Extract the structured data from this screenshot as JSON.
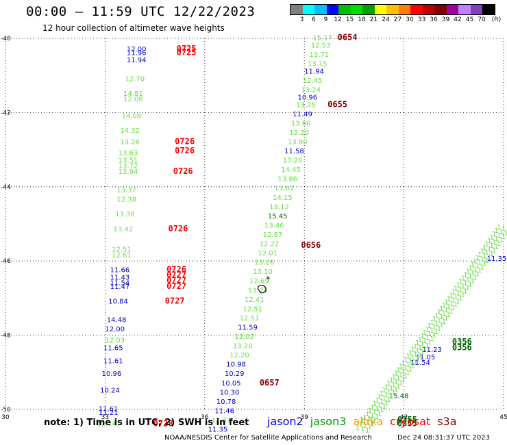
{
  "header": {
    "title": "00:00 — 11:59 UTC 12/22/2023",
    "subtitle": "12 hour collection of altimeter wave heights"
  },
  "legend": {
    "unit": "(ft)",
    "colors": [
      "#808080",
      "#00ffff",
      "#00bfff",
      "#0000ff",
      "#00bf00",
      "#00dd00",
      "#00a000",
      "#ffff00",
      "#ffc000",
      "#ff8000",
      "#ff0000",
      "#c00000",
      "#800000",
      "#a000a0",
      "#c080ff",
      "#8040c0",
      "#000000"
    ],
    "ticks": [
      "3",
      "6",
      "9",
      "12",
      "15",
      "18",
      "21",
      "24",
      "27",
      "30",
      "33",
      "36",
      "39",
      "42",
      "45",
      "70"
    ]
  },
  "colors": {
    "jason2": "#0000dd",
    "jason3": "#009900",
    "altika": "#ff9900",
    "cryosat": "#ff0000",
    "s3a": "#880000",
    "light_green": "#66dd44",
    "blue": "#0000cc",
    "dark_green": "#006600"
  },
  "map": {
    "lon_range": [
      30,
      45
    ],
    "lat_range": [
      -50,
      -40
    ],
    "lon_ticks": [
      "30",
      "33",
      "36",
      "39",
      "42",
      "45"
    ],
    "lat_ticks": [
      "-40",
      "-42",
      "-44",
      "-46",
      "-48",
      "-50"
    ]
  },
  "tracks": {
    "west": [
      {
        "lon": 33.65,
        "lat": -40.35,
        "text": "12.00",
        "c": "blue"
      },
      {
        "lon": 33.65,
        "lat": -40.45,
        "text": "11.96",
        "c": "blue"
      },
      {
        "lon": 33.65,
        "lat": -40.65,
        "text": "11.94",
        "c": "blue"
      },
      {
        "lon": 33.6,
        "lat": -41.15,
        "text": "12.70",
        "c": "light_green"
      },
      {
        "lon": 33.55,
        "lat": -41.55,
        "text": "14.81",
        "c": "light_green"
      },
      {
        "lon": 33.55,
        "lat": -41.7,
        "text": "12.08",
        "c": "light_green"
      },
      {
        "lon": 33.5,
        "lat": -42.15,
        "text": "14.08",
        "c": "light_green"
      },
      {
        "lon": 33.45,
        "lat": -42.55,
        "text": "14.32",
        "c": "light_green"
      },
      {
        "lon": 33.45,
        "lat": -42.85,
        "text": "13.26",
        "c": "light_green"
      },
      {
        "lon": 33.4,
        "lat": -43.15,
        "text": "13.63",
        "c": "light_green"
      },
      {
        "lon": 33.4,
        "lat": -43.35,
        "text": "13.51",
        "c": "light_green"
      },
      {
        "lon": 33.4,
        "lat": -43.5,
        "text": "13.72",
        "c": "light_green"
      },
      {
        "lon": 33.4,
        "lat": -43.65,
        "text": "13.94",
        "c": "light_green"
      },
      {
        "lon": 33.35,
        "lat": -44.15,
        "text": "13.37",
        "c": "light_green"
      },
      {
        "lon": 33.35,
        "lat": -44.4,
        "text": "12.38",
        "c": "light_green"
      },
      {
        "lon": 33.3,
        "lat": -44.8,
        "text": "13.38",
        "c": "light_green"
      },
      {
        "lon": 33.25,
        "lat": -45.2,
        "text": "13.42",
        "c": "light_green"
      },
      {
        "lon": 33.2,
        "lat": -45.75,
        "text": "12.51",
        "c": "light_green"
      },
      {
        "lon": 33.2,
        "lat": -45.9,
        "text": "12.61",
        "c": "light_green"
      },
      {
        "lon": 33.15,
        "lat": -46.3,
        "text": "11.66",
        "c": "blue"
      },
      {
        "lon": 33.15,
        "lat": -46.5,
        "text": "11.43",
        "c": "blue"
      },
      {
        "lon": 33.15,
        "lat": -46.65,
        "text": "11.54",
        "c": "blue"
      },
      {
        "lon": 33.15,
        "lat": -46.75,
        "text": "11.47",
        "c": "blue"
      },
      {
        "lon": 33.1,
        "lat": -47.15,
        "text": "10.84",
        "c": "blue"
      },
      {
        "lon": 33.05,
        "lat": -47.65,
        "text": "14.48",
        "c": "blue"
      },
      {
        "lon": 33.0,
        "lat": -47.9,
        "text": "12.00",
        "c": "blue"
      },
      {
        "lon": 33.0,
        "lat": -48.2,
        "text": "12.03",
        "c": "light_green"
      },
      {
        "lon": 32.95,
        "lat": -48.4,
        "text": "11.65",
        "c": "blue"
      },
      {
        "lon": 32.95,
        "lat": -48.75,
        "text": "11.61",
        "c": "blue"
      },
      {
        "lon": 32.9,
        "lat": -49.1,
        "text": "10.96",
        "c": "blue"
      },
      {
        "lon": 32.85,
        "lat": -49.55,
        "text": "10.24",
        "c": "blue"
      },
      {
        "lon": 32.8,
        "lat": -50.05,
        "text": "11.61",
        "c": "blue"
      },
      {
        "lon": 32.8,
        "lat": -50.15,
        "text": "11.21",
        "c": "blue"
      },
      {
        "lon": 32.75,
        "lat": -50.45,
        "text": "12.14",
        "c": "light_green"
      }
    ],
    "middle": [
      {
        "lon": 39.25,
        "lat": -40.05,
        "text": "15.17",
        "c": "light_green"
      },
      {
        "lon": 39.2,
        "lat": -40.25,
        "text": "12.53",
        "c": "light_green"
      },
      {
        "lon": 39.15,
        "lat": -40.5,
        "text": "13.71",
        "c": "light_green"
      },
      {
        "lon": 39.1,
        "lat": -40.75,
        "text": "13.15",
        "c": "light_green"
      },
      {
        "lon": 39.0,
        "lat": -40.95,
        "text": "11.94",
        "c": "blue"
      },
      {
        "lon": 38.95,
        "lat": -41.2,
        "text": "12.45",
        "c": "light_green"
      },
      {
        "lon": 38.9,
        "lat": -41.45,
        "text": "13.24",
        "c": "light_green"
      },
      {
        "lon": 38.8,
        "lat": -41.65,
        "text": "10.96",
        "c": "blue"
      },
      {
        "lon": 38.75,
        "lat": -41.85,
        "text": "13.25",
        "c": "light_green"
      },
      {
        "lon": 38.65,
        "lat": -42.1,
        "text": "11.49",
        "c": "blue"
      },
      {
        "lon": 38.6,
        "lat": -42.35,
        "text": "13.86",
        "c": "light_green"
      },
      {
        "lon": 38.55,
        "lat": -42.6,
        "text": "13.20",
        "c": "light_green"
      },
      {
        "lon": 38.5,
        "lat": -42.85,
        "text": "13.80",
        "c": "light_green"
      },
      {
        "lon": 38.4,
        "lat": -43.1,
        "text": "11.58",
        "c": "blue"
      },
      {
        "lon": 38.35,
        "lat": -43.35,
        "text": "13.20",
        "c": "light_green"
      },
      {
        "lon": 38.3,
        "lat": -43.6,
        "text": "14.45",
        "c": "light_green"
      },
      {
        "lon": 38.2,
        "lat": -43.85,
        "text": "13.86",
        "c": "light_green"
      },
      {
        "lon": 38.1,
        "lat": -44.1,
        "text": "13.61",
        "c": "light_green"
      },
      {
        "lon": 38.05,
        "lat": -44.35,
        "text": "14.15",
        "c": "light_green"
      },
      {
        "lon": 37.95,
        "lat": -44.6,
        "text": "13.12",
        "c": "light_green"
      },
      {
        "lon": 37.9,
        "lat": -44.85,
        "text": "15.45",
        "c": "dark_green"
      },
      {
        "lon": 37.8,
        "lat": -45.1,
        "text": "13.46",
        "c": "light_green"
      },
      {
        "lon": 37.75,
        "lat": -45.35,
        "text": "12.87",
        "c": "light_green"
      },
      {
        "lon": 37.65,
        "lat": -45.6,
        "text": "12.22",
        "c": "light_green"
      },
      {
        "lon": 37.6,
        "lat": -45.85,
        "text": "12.01",
        "c": "light_green"
      },
      {
        "lon": 37.5,
        "lat": -46.1,
        "text": "13.26",
        "c": "light_green"
      },
      {
        "lon": 37.45,
        "lat": -46.35,
        "text": "13.10",
        "c": "light_green"
      },
      {
        "lon": 37.35,
        "lat": -46.6,
        "text": "12.69",
        "c": "light_green"
      },
      {
        "lon": 37.3,
        "lat": -46.85,
        "text": "13.74",
        "c": "light_green"
      },
      {
        "lon": 37.2,
        "lat": -47.1,
        "text": "12.41",
        "c": "light_green"
      },
      {
        "lon": 37.15,
        "lat": -47.35,
        "text": "12.51",
        "c": "light_green"
      },
      {
        "lon": 37.05,
        "lat": -47.6,
        "text": "12.51",
        "c": "light_green"
      },
      {
        "lon": 37.0,
        "lat": -47.85,
        "text": "11.59",
        "c": "blue"
      },
      {
        "lon": 36.9,
        "lat": -48.1,
        "text": "12.02",
        "c": "light_green"
      },
      {
        "lon": 36.85,
        "lat": -48.35,
        "text": "13.20",
        "c": "light_green"
      },
      {
        "lon": 36.75,
        "lat": -48.6,
        "text": "12.20",
        "c": "light_green"
      },
      {
        "lon": 36.65,
        "lat": -48.85,
        "text": "10.98",
        "c": "blue"
      },
      {
        "lon": 36.6,
        "lat": -49.1,
        "text": "10.29",
        "c": "blue"
      },
      {
        "lon": 36.5,
        "lat": -49.35,
        "text": "10.05",
        "c": "blue"
      },
      {
        "lon": 36.45,
        "lat": -49.6,
        "text": "10.30",
        "c": "blue"
      },
      {
        "lon": 36.35,
        "lat": -49.85,
        "text": "10.78",
        "c": "blue"
      },
      {
        "lon": 36.3,
        "lat": -50.1,
        "text": "11.46",
        "c": "blue"
      },
      {
        "lon": 36.2,
        "lat": -50.35,
        "text": "12.37",
        "c": "light_green"
      },
      {
        "lon": 36.1,
        "lat": -50.6,
        "text": "11.35",
        "c": "blue"
      }
    ],
    "east": [
      {
        "lon": 44.5,
        "lat": -46.0,
        "text": "11.35",
        "c": "blue"
      },
      {
        "lon": 42.55,
        "lat": -48.45,
        "text": "11.23",
        "c": "blue"
      },
      {
        "lon": 42.35,
        "lat": -48.65,
        "text": "11.05",
        "c": "blue"
      },
      {
        "lon": 42.2,
        "lat": -48.8,
        "text": "11.54",
        "c": "blue"
      },
      {
        "lon": 41.55,
        "lat": -49.7,
        "text": "15.48",
        "c": "dark_green"
      }
    ]
  },
  "times": [
    {
      "lon": 35.15,
      "lat": -40.35,
      "text": "0725",
      "c": "#ff0000"
    },
    {
      "lon": 35.15,
      "lat": -40.45,
      "text": "0725",
      "c": "#ff0000"
    },
    {
      "lon": 35.1,
      "lat": -42.85,
      "text": "0726",
      "c": "#ff0000"
    },
    {
      "lon": 35.1,
      "lat": -43.1,
      "text": "0726",
      "c": "#ff0000"
    },
    {
      "lon": 35.05,
      "lat": -43.65,
      "text": "0726",
      "c": "#ff0000"
    },
    {
      "lon": 34.9,
      "lat": -45.2,
      "text": "0726",
      "c": "#ff0000"
    },
    {
      "lon": 34.85,
      "lat": -46.3,
      "text": "0726",
      "c": "#ff0000"
    },
    {
      "lon": 34.85,
      "lat": -46.45,
      "text": "0727",
      "c": "#ff0000"
    },
    {
      "lon": 34.85,
      "lat": -46.6,
      "text": "0727",
      "c": "#ff0000"
    },
    {
      "lon": 34.85,
      "lat": -46.75,
      "text": "0727",
      "c": "#ff0000"
    },
    {
      "lon": 34.8,
      "lat": -47.15,
      "text": "0727",
      "c": "#ff0000"
    },
    {
      "lon": 34.45,
      "lat": -50.45,
      "text": "0728",
      "c": "#ff0000"
    },
    {
      "lon": 40.0,
      "lat": -40.05,
      "text": "0654",
      "c": "#880000"
    },
    {
      "lon": 39.7,
      "lat": -41.85,
      "text": "0655",
      "c": "#880000"
    },
    {
      "lon": 38.9,
      "lat": -45.65,
      "text": "0656",
      "c": "#880000"
    },
    {
      "lon": 37.65,
      "lat": -49.35,
      "text": "0657",
      "c": "#880000"
    },
    {
      "lon": 43.45,
      "lat": -48.25,
      "text": "0356",
      "c": "#006600"
    },
    {
      "lon": 43.45,
      "lat": -48.4,
      "text": "0356",
      "c": "#006600"
    },
    {
      "lon": 41.8,
      "lat": -50.35,
      "text": "0355",
      "c": "#006600"
    },
    {
      "lon": 41.8,
      "lat": -50.45,
      "text": "0355",
      "c": "#006600"
    }
  ],
  "footer": {
    "note": "note:  1) Time is in UTC;  2) SWH is in feet",
    "credit": "NOAA/NESDIS Center for Satellite Applications and Research",
    "timestamp": "Dec 24 08:31:37 UTC 2023",
    "satellites": [
      "jason2",
      "jason3",
      "altika",
      "cryosat",
      "s3a"
    ]
  }
}
